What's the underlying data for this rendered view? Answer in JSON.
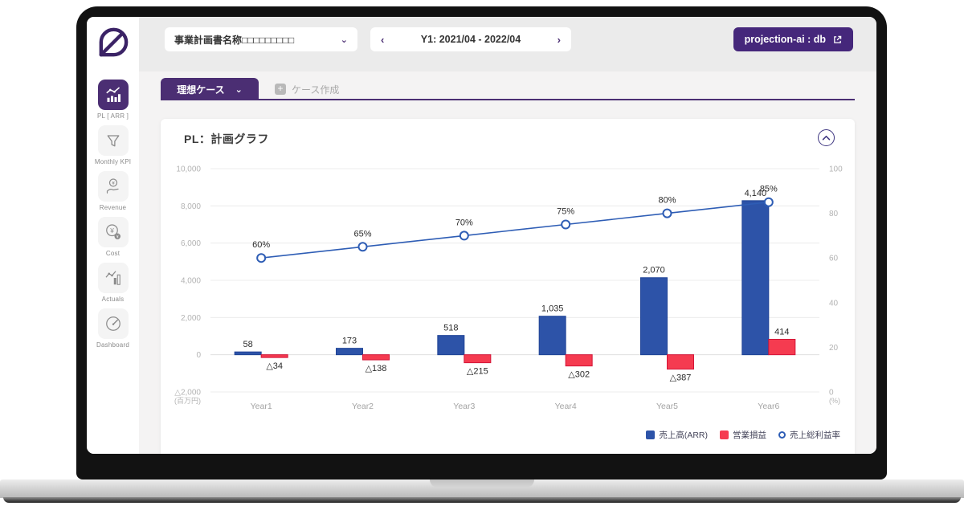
{
  "colors": {
    "accent": "#4b2e73",
    "accent_dark": "#3b2366",
    "button_purple": "#45277b",
    "bar_blue": "#2d53a8",
    "bar_red": "#f53b50",
    "line_blue": "#2e5db5"
  },
  "topbar": {
    "plan_selector_label": "事業計画書名称□□□□□□□□□",
    "period_prev": "‹",
    "period_label": "Y1: 2021/04 - 2022/04",
    "period_next": "›",
    "db_button_label": "projection-ai : db"
  },
  "sidebar": {
    "items": [
      {
        "label": "PL [ ARR ]",
        "icon": "pl-chart-icon",
        "active": true
      },
      {
        "label": "Monthly KPI",
        "icon": "funnel-icon",
        "active": false
      },
      {
        "label": "Revenue",
        "icon": "hand-coin-icon",
        "active": false
      },
      {
        "label": "Cost",
        "icon": "yen-cost-icon",
        "active": false
      },
      {
        "label": "Actuals",
        "icon": "actuals-chart-icon",
        "active": false
      },
      {
        "label": "Dashboard",
        "icon": "gauge-icon",
        "active": false
      }
    ]
  },
  "tabs": {
    "active_label": "理想ケース",
    "create_label": "ケース作成"
  },
  "card": {
    "title": "PL：計画グラフ"
  },
  "chart_data": {
    "type": "bar",
    "title": "PL：計画グラフ",
    "categories": [
      "Year1",
      "Year2",
      "Year3",
      "Year4",
      "Year5",
      "Year6"
    ],
    "series": [
      {
        "name": "売上高(ARR)",
        "type": "bar",
        "axis": "left",
        "color": "#2d53a8",
        "border_color": "#1f4396",
        "values": [
          58,
          173,
          518,
          1035,
          2070,
          4140
        ]
      },
      {
        "name": "営業損益",
        "type": "bar",
        "axis": "left",
        "color": "#f53b50",
        "border_color": "#d41538",
        "values": [
          -34,
          -138,
          -215,
          -302,
          -387,
          414
        ]
      },
      {
        "name": "売上総利益率",
        "type": "line",
        "axis": "right",
        "color": "#2e5db5",
        "values": [
          60,
          65,
          70,
          75,
          80,
          85
        ],
        "unit": "%"
      }
    ],
    "left_axis": {
      "min": -2000,
      "max": 10000,
      "ticks": [
        "10,000",
        "8,000",
        "6,000",
        "4,000",
        "2,000",
        "0",
        "△2,000"
      ],
      "unit": "(百万円)"
    },
    "right_axis": {
      "min": 0,
      "max": 100,
      "ticks": [
        100,
        80,
        60,
        40,
        20,
        0
      ],
      "unit": "(%)"
    },
    "grid": true,
    "legend_position": "bottom-right",
    "negative_prefix": "△"
  }
}
